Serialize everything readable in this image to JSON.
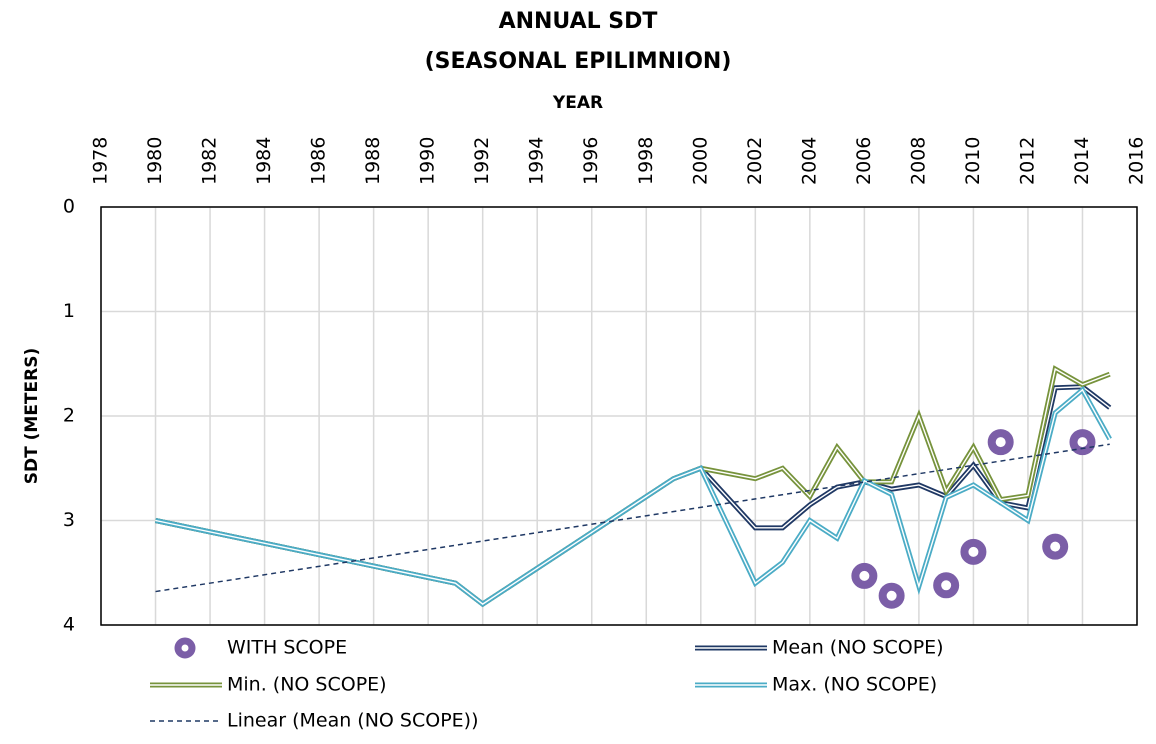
{
  "chart_data": {
    "type": "line",
    "title": [
      "ANNUAL SDT",
      "(SEASONAL EPILIMNION)"
    ],
    "x_label": "YEAR",
    "y_label": "SDT (METERS)",
    "x_axis_position": "top",
    "y_inverted": true,
    "grid": true,
    "legend": "bottom",
    "xlim": [
      1978,
      2016
    ],
    "xticks": [
      1978,
      1980,
      1982,
      1984,
      1986,
      1988,
      1990,
      1992,
      1994,
      1996,
      1998,
      2000,
      2002,
      2004,
      2006,
      2008,
      2010,
      2012,
      2014,
      2016
    ],
    "ylim": [
      0,
      4
    ],
    "yticks": [
      0,
      1,
      2,
      3,
      4
    ],
    "series": [
      {
        "name": "WITH SCOPE",
        "type": "scatter",
        "color": "#7b5ea7",
        "x": [
          2006,
          2007,
          2009,
          2010,
          2011,
          2013,
          2014
        ],
        "values": [
          3.53,
          3.72,
          3.62,
          3.3,
          2.25,
          3.25,
          2.25
        ]
      },
      {
        "name": "Mean (NO SCOPE)",
        "type": "line",
        "color": "#1f3864",
        "x": [
          1980,
          1991,
          1992,
          1999,
          2000,
          2002,
          2003,
          2004,
          2005,
          2006,
          2007,
          2008,
          2009,
          2010,
          2011,
          2012,
          2013,
          2014,
          2015
        ],
        "values": [
          3.0,
          3.6,
          3.8,
          2.6,
          2.5,
          3.07,
          3.07,
          2.85,
          2.68,
          2.63,
          2.7,
          2.66,
          2.77,
          2.47,
          2.83,
          2.88,
          1.73,
          1.72,
          1.92
        ]
      },
      {
        "name": "Min. (NO SCOPE)",
        "type": "line",
        "color": "#77933c",
        "x": [
          1980,
          1991,
          1992,
          1999,
          2000,
          2002,
          2003,
          2004,
          2005,
          2006,
          2007,
          2008,
          2009,
          2010,
          2011,
          2012,
          2013,
          2014,
          2015
        ],
        "values": [
          3.0,
          3.6,
          3.8,
          2.6,
          2.5,
          2.6,
          2.5,
          2.77,
          2.3,
          2.63,
          2.63,
          2.0,
          2.72,
          2.3,
          2.8,
          2.76,
          1.55,
          1.7,
          1.6
        ]
      },
      {
        "name": "Max. (NO SCOPE)",
        "type": "line",
        "color": "#4bacc6",
        "x": [
          1980,
          1991,
          1992,
          1999,
          2000,
          2002,
          2003,
          2004,
          2005,
          2006,
          2007,
          2008,
          2009,
          2010,
          2011,
          2012,
          2013,
          2014,
          2015
        ],
        "values": [
          3.0,
          3.6,
          3.8,
          2.6,
          2.5,
          3.6,
          3.4,
          3.0,
          3.17,
          2.62,
          2.75,
          3.63,
          2.78,
          2.66,
          2.83,
          3.0,
          1.97,
          1.75,
          2.22
        ]
      },
      {
        "name": "Linear (Mean (NO SCOPE))",
        "type": "trend",
        "color": "#1f3864",
        "x": [
          1980,
          2015
        ],
        "values": [
          3.68,
          2.27
        ]
      }
    ]
  }
}
